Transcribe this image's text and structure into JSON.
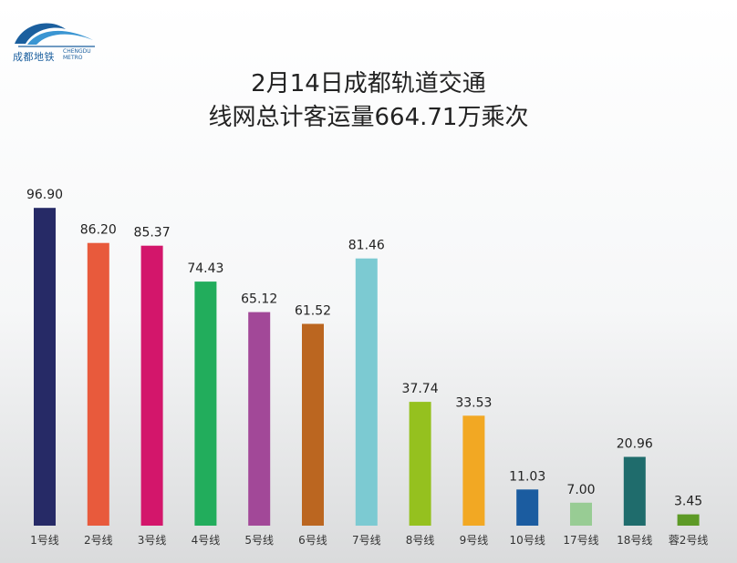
{
  "brand": {
    "name_cn": "成都地铁",
    "name_en": "CHENGDU METRO"
  },
  "title": {
    "line1": "2月14日成都轨道交通",
    "line2": "线网总计客运量664.71万乘次"
  },
  "chart_data": {
    "type": "bar",
    "title": "2月14日成都轨道交通 线网总计客运量664.71万乘次",
    "categories": [
      "1号线",
      "2号线",
      "3号线",
      "4号线",
      "5号线",
      "6号线",
      "7号线",
      "8号线",
      "9号线",
      "10号线",
      "17号线",
      "18号线",
      "蓉2号线"
    ],
    "values": [
      96.9,
      86.2,
      85.37,
      74.43,
      65.12,
      61.52,
      81.46,
      37.74,
      33.53,
      11.03,
      7.0,
      20.96,
      3.45
    ],
    "value_labels": [
      "96.90",
      "86.20",
      "85.37",
      "74.43",
      "65.12",
      "61.52",
      "81.46",
      "37.74",
      "33.53",
      "11.03",
      "7.00",
      "20.96",
      "3.45"
    ],
    "colors": [
      "#262a66",
      "#e85a3c",
      "#d3166b",
      "#22ad5c",
      "#a24898",
      "#bb6620",
      "#7ccad2",
      "#95c11f",
      "#f2a823",
      "#1b5ca0",
      "#98cc94",
      "#1f6c6c",
      "#5d9a26"
    ],
    "ylim": [
      0,
      100
    ],
    "grid": false,
    "legend": "none",
    "xlabel": "",
    "ylabel": ""
  }
}
